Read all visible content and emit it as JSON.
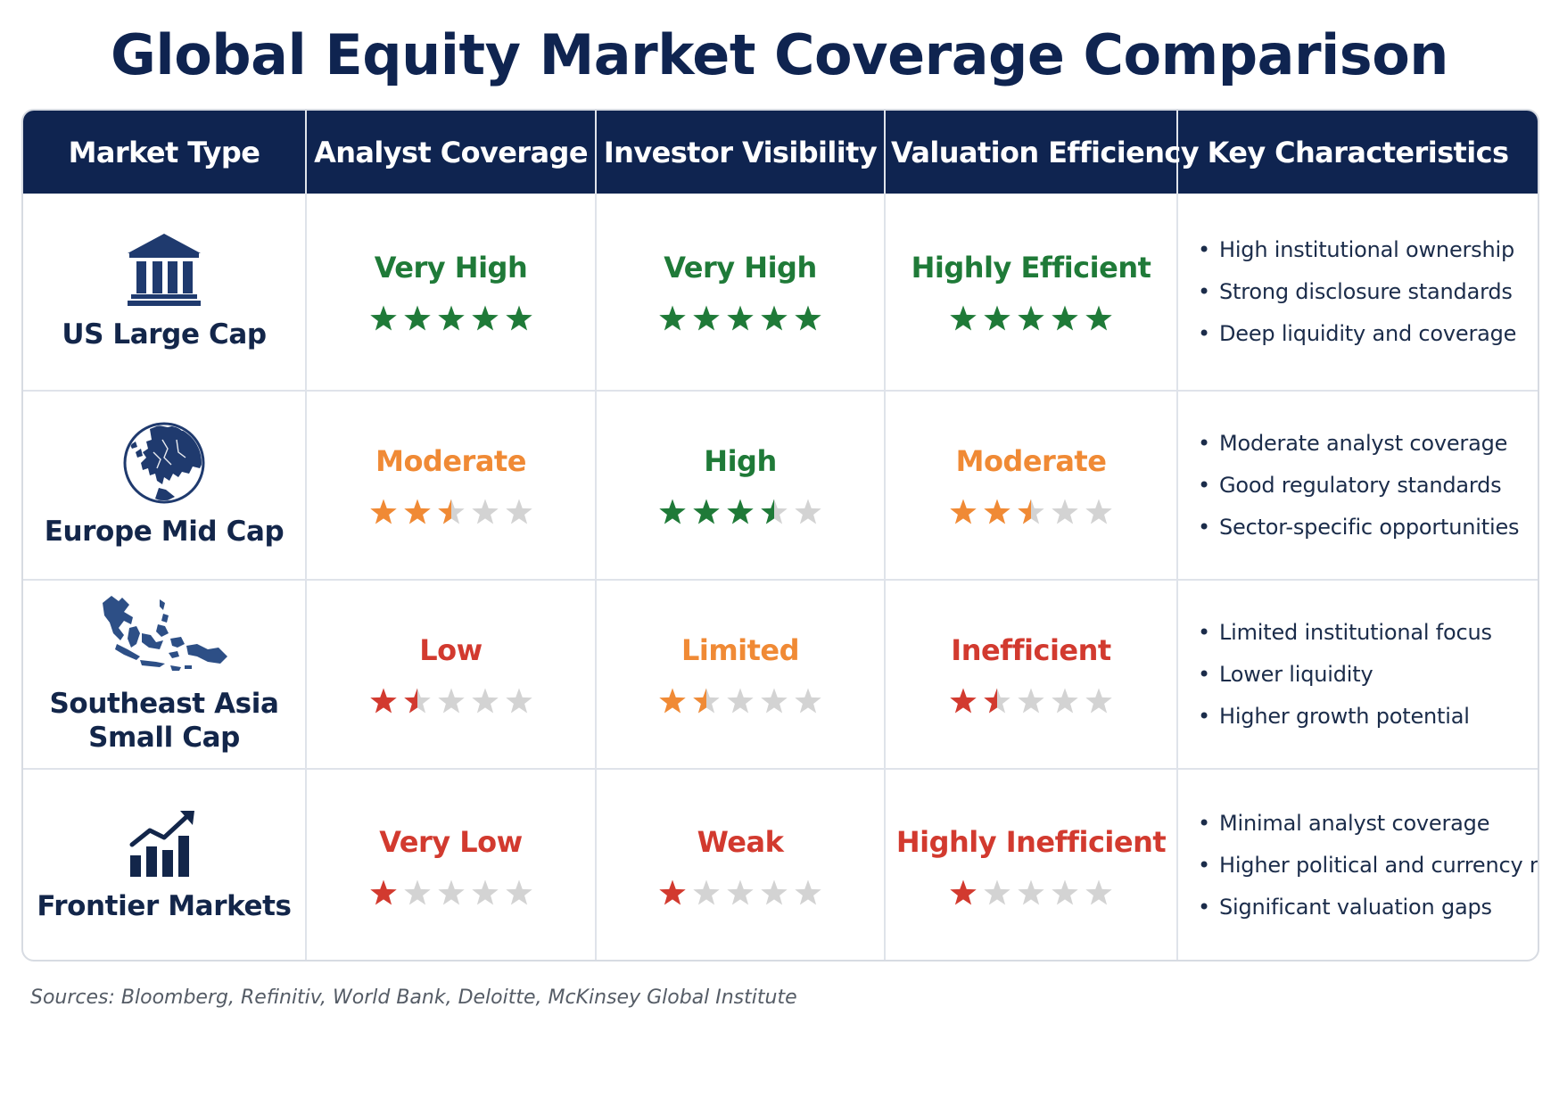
{
  "title": "Global Equity Market Coverage Comparison",
  "headers": [
    "Market Type",
    "Analyst Coverage",
    "Investor Visibility",
    "Valuation Efficiency",
    "Key Characteristics"
  ],
  "colors": {
    "header_bg": "#0f2450",
    "green": "#1f7a38",
    "orange": "#f08a35",
    "red": "#d23a2f",
    "empty_star": "#d3d3d3"
  },
  "rows": [
    {
      "market": "US Large Cap",
      "icon": "bank-building-icon",
      "analyst": {
        "label": "Very High",
        "stars": 5,
        "color": "#1f7a38"
      },
      "visibility": {
        "label": "Very High",
        "stars": 5,
        "color": "#1f7a38"
      },
      "valuation": {
        "label": "Highly Efficient",
        "stars": 5,
        "color": "#1f7a38"
      },
      "characteristics": [
        "High institutional ownership",
        "Strong disclosure standards",
        "Deep liquidity and coverage"
      ]
    },
    {
      "market": "Europe Mid Cap",
      "icon": "europe-globe-icon",
      "analyst": {
        "label": "Moderate",
        "stars": 2.5,
        "color": "#f08a35"
      },
      "visibility": {
        "label": "High",
        "stars": 3.5,
        "color": "#1f7a38"
      },
      "valuation": {
        "label": "Moderate",
        "stars": 2.5,
        "color": "#f08a35"
      },
      "characteristics": [
        "Moderate analyst coverage",
        "Good regulatory standards",
        "Sector-specific opportunities"
      ]
    },
    {
      "market": "Southeast Asia Small Cap",
      "market_lines": [
        "Southeast Asia",
        "Small Cap"
      ],
      "icon": "southeast-asia-map-icon",
      "analyst": {
        "label": "Low",
        "stars": 1.5,
        "color": "#d23a2f"
      },
      "visibility": {
        "label": "Limited",
        "stars": 1.5,
        "color": "#f08a35"
      },
      "valuation": {
        "label": "Inefficient",
        "stars": 1.5,
        "color": "#d23a2f"
      },
      "characteristics": [
        "Limited institutional focus",
        "Lower liquidity",
        "Higher growth potential"
      ]
    },
    {
      "market": "Frontier Markets",
      "icon": "growth-chart-icon",
      "analyst": {
        "label": "Very Low",
        "stars": 1,
        "color": "#d23a2f"
      },
      "visibility": {
        "label": "Weak",
        "stars": 1,
        "color": "#d23a2f"
      },
      "valuation": {
        "label": "Highly Inefficient",
        "stars": 1,
        "color": "#d23a2f"
      },
      "characteristics": [
        "Minimal analyst coverage",
        "Higher political and currency risk",
        "Significant valuation gaps"
      ]
    }
  ],
  "sources": "Sources: Bloomberg, Refinitiv, World Bank, Deloitte, McKinsey Global Institute"
}
